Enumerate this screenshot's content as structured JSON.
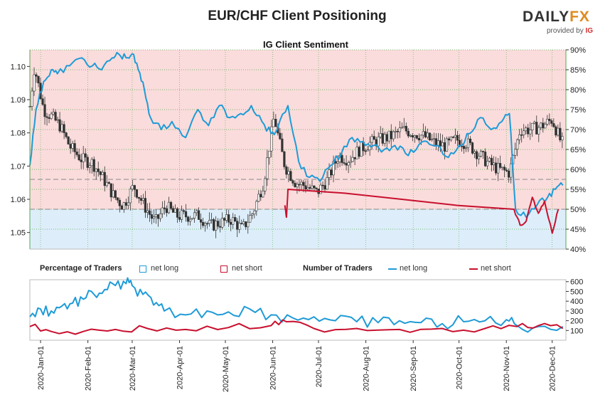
{
  "header": {
    "title": "EUR/CHF Client Positioning",
    "subtitle": "IG Client Sentiment",
    "brand_left": "DAILY",
    "brand_right": "FX",
    "brand_sub": "provided by",
    "brand_ig": "IG"
  },
  "legend": {
    "pct_heading": "Percentage of Traders",
    "pct_long": "net long",
    "pct_short": "net short",
    "num_heading": "Number of Traders",
    "num_long": "net long",
    "num_short": "net short"
  },
  "colors": {
    "long": "#1f9bd7",
    "short": "#c8102e",
    "long_bg": "#ddeefa",
    "short_bg": "#fadcdc",
    "candle_up": "#ffffff",
    "candle_down": "#333333",
    "grid": "#55a84a"
  },
  "chart_data": [
    {
      "type": "line",
      "title": "IG Client Sentiment",
      "y_left_ticks": [
        "1.10",
        "1.09",
        "1.08",
        "1.07",
        "1.06",
        "1.05"
      ],
      "y_left_range": [
        1.045,
        1.105
      ],
      "y_right_ticks": [
        "90%",
        "85%",
        "80%",
        "75%",
        "70%",
        "65%",
        "60%",
        "55%",
        "50%",
        "45%",
        "40%"
      ],
      "y_right_range": [
        40,
        90
      ],
      "price_reference_lines": [
        1.066,
        1.057
      ],
      "x_ticks": [
        "2020-Jan-01",
        "2020-Feb-01",
        "2020-Mar-01",
        "2020-Apr-01",
        "2020-May-01",
        "2020-Jun-01",
        "2020-Jul-01",
        "2020-Aug-01",
        "2020-Sep-01",
        "2020-Oct-01",
        "2020-Nov-01",
        "2020-Dec-01"
      ],
      "price_close": {
        "dates": [
          "2019-Dec-25",
          "2019-Dec-28",
          "2020-Jan-03",
          "2020-Jan-08",
          "2020-Jan-14",
          "2020-Jan-20",
          "2020-Jan-28",
          "2020-Feb-04",
          "2020-Feb-10",
          "2020-Feb-18",
          "2020-Feb-24",
          "2020-Mar-02",
          "2020-Mar-09",
          "2020-Mar-16",
          "2020-Mar-23",
          "2020-Mar-30",
          "2020-Apr-07",
          "2020-Apr-14",
          "2020-Apr-21",
          "2020-Apr-28",
          "2020-May-05",
          "2020-May-12",
          "2020-May-19",
          "2020-May-26",
          "2020-Jun-02",
          "2020-Jun-05",
          "2020-Jun-09",
          "2020-Jun-16",
          "2020-Jun-23",
          "2020-Jun-30",
          "2020-Jul-07",
          "2020-Jul-14",
          "2020-Jul-21",
          "2020-Jul-28",
          "2020-Aug-04",
          "2020-Aug-11",
          "2020-Aug-18",
          "2020-Aug-25",
          "2020-Sep-01",
          "2020-Sep-08",
          "2020-Sep-15",
          "2020-Sep-22",
          "2020-Sep-29",
          "2020-Oct-06",
          "2020-Oct-13",
          "2020-Oct-20",
          "2020-Oct-27",
          "2020-Nov-03",
          "2020-Nov-10",
          "2020-Nov-17",
          "2020-Nov-24",
          "2020-Dec-01",
          "2020-Dec-07"
        ],
        "values": [
          1.088,
          1.1,
          1.087,
          1.085,
          1.082,
          1.076,
          1.072,
          1.071,
          1.067,
          1.061,
          1.058,
          1.064,
          1.058,
          1.053,
          1.058,
          1.055,
          1.055,
          1.055,
          1.052,
          1.053,
          1.054,
          1.051,
          1.056,
          1.065,
          1.085,
          1.078,
          1.07,
          1.065,
          1.064,
          1.062,
          1.066,
          1.073,
          1.072,
          1.075,
          1.077,
          1.078,
          1.079,
          1.081,
          1.08,
          1.079,
          1.077,
          1.076,
          1.078,
          1.077,
          1.074,
          1.071,
          1.069,
          1.068,
          1.081,
          1.081,
          1.082,
          1.084,
          1.077
        ]
      },
      "net_long_pct": {
        "dates": [
          "2019-Dec-25",
          "2019-Dec-29",
          "2020-Jan-03",
          "2020-Jan-08",
          "2020-Jan-12",
          "2020-Jan-20",
          "2020-Jan-28",
          "2020-Feb-04",
          "2020-Feb-10",
          "2020-Feb-17",
          "2020-Feb-21",
          "2020-Feb-26",
          "2020-Mar-01",
          "2020-Mar-05",
          "2020-Mar-09",
          "2020-Mar-13",
          "2020-Mar-20",
          "2020-Mar-27",
          "2020-Apr-05",
          "2020-Apr-13",
          "2020-Apr-20",
          "2020-Apr-27",
          "2020-May-04",
          "2020-May-11",
          "2020-May-18",
          "2020-May-25",
          "2020-May-31",
          "2020-Jun-04",
          "2020-Jun-11",
          "2020-Jun-18",
          "2020-Jun-25",
          "2020-Jul-02",
          "2020-Jul-09",
          "2020-Jul-16",
          "2020-Jul-23",
          "2020-Jul-30",
          "2020-Aug-06",
          "2020-Aug-13",
          "2020-Aug-20",
          "2020-Aug-27",
          "2020-Sep-03",
          "2020-Sep-10",
          "2020-Sep-17",
          "2020-Sep-24",
          "2020-Oct-01",
          "2020-Oct-08",
          "2020-Oct-15",
          "2020-Oct-22",
          "2020-Oct-29",
          "2020-Nov-03",
          "2020-Nov-07",
          "2020-Nov-14",
          "2020-Nov-21",
          "2020-Nov-28",
          "2020-Dec-03",
          "2020-Dec-08"
        ],
        "values": [
          61,
          75,
          82,
          85,
          84,
          86,
          88,
          86,
          85,
          88,
          89,
          88,
          89,
          85,
          80,
          73,
          70,
          72,
          68,
          75,
          71,
          76,
          73,
          74,
          76,
          72,
          69,
          70,
          76,
          62,
          58,
          57,
          61,
          64,
          68,
          67,
          66,
          65,
          66,
          64,
          65,
          67,
          66,
          63,
          66,
          69,
          73,
          70,
          72,
          74,
          50,
          48,
          51,
          53,
          55,
          56
        ]
      },
      "net_short_pct": {
        "dates": [
          "2020-Jun-09",
          "2020-Jun-10",
          "2020-Jun-11",
          "2020-Nov-06",
          "2020-Nov-10",
          "2020-Nov-14",
          "2020-Nov-18",
          "2020-Nov-22",
          "2020-Nov-26",
          "2020-Dec-01",
          "2020-Dec-05"
        ],
        "values": [
          51,
          48,
          55,
          50,
          46,
          47,
          53,
          49,
          52,
          44,
          50
        ]
      }
    },
    {
      "type": "line",
      "title": "Number of Traders",
      "y_ticks": [
        "600",
        "500",
        "400",
        "300",
        "200",
        "100"
      ],
      "y_range": [
        0,
        620
      ],
      "net_long": {
        "dates": [
          "2019-Dec-25",
          "2020-Jan-01",
          "2020-Jan-08",
          "2020-Jan-15",
          "2020-Jan-22",
          "2020-Jan-29",
          "2020-Feb-05",
          "2020-Feb-12",
          "2020-Feb-19",
          "2020-Feb-26",
          "2020-Mar-01",
          "2020-Mar-08",
          "2020-Mar-15",
          "2020-Mar-22",
          "2020-Apr-05",
          "2020-Apr-19",
          "2020-May-03",
          "2020-May-17",
          "2020-May-31",
          "2020-Jun-14",
          "2020-Jun-28",
          "2020-Jul-12",
          "2020-Jul-26",
          "2020-Aug-09",
          "2020-Aug-23",
          "2020-Sep-06",
          "2020-Sep-20",
          "2020-Oct-04",
          "2020-Oct-18",
          "2020-Nov-01",
          "2020-Nov-08",
          "2020-Nov-22",
          "2020-Dec-08"
        ],
        "values": [
          240,
          320,
          300,
          350,
          380,
          420,
          470,
          520,
          560,
          580,
          560,
          470,
          360,
          300,
          260,
          300,
          290,
          320,
          260,
          230,
          240,
          200,
          190,
          180,
          200,
          180,
          170,
          190,
          200,
          210,
          150,
          140,
          140
        ]
      },
      "net_short": {
        "dates": [
          "2019-Dec-25",
          "2020-Jan-08",
          "2020-Jan-29",
          "2020-Feb-19",
          "2020-Mar-11",
          "2020-Apr-05",
          "2020-May-03",
          "2020-May-31",
          "2020-Jun-10",
          "2020-Jun-28",
          "2020-Jul-26",
          "2020-Aug-23",
          "2020-Sep-20",
          "2020-Oct-18",
          "2020-Nov-08",
          "2020-Nov-22",
          "2020-Dec-08"
        ],
        "values": [
          140,
          90,
          90,
          110,
          120,
          110,
          130,
          150,
          190,
          120,
          120,
          110,
          120,
          120,
          140,
          150,
          120
        ]
      }
    }
  ]
}
